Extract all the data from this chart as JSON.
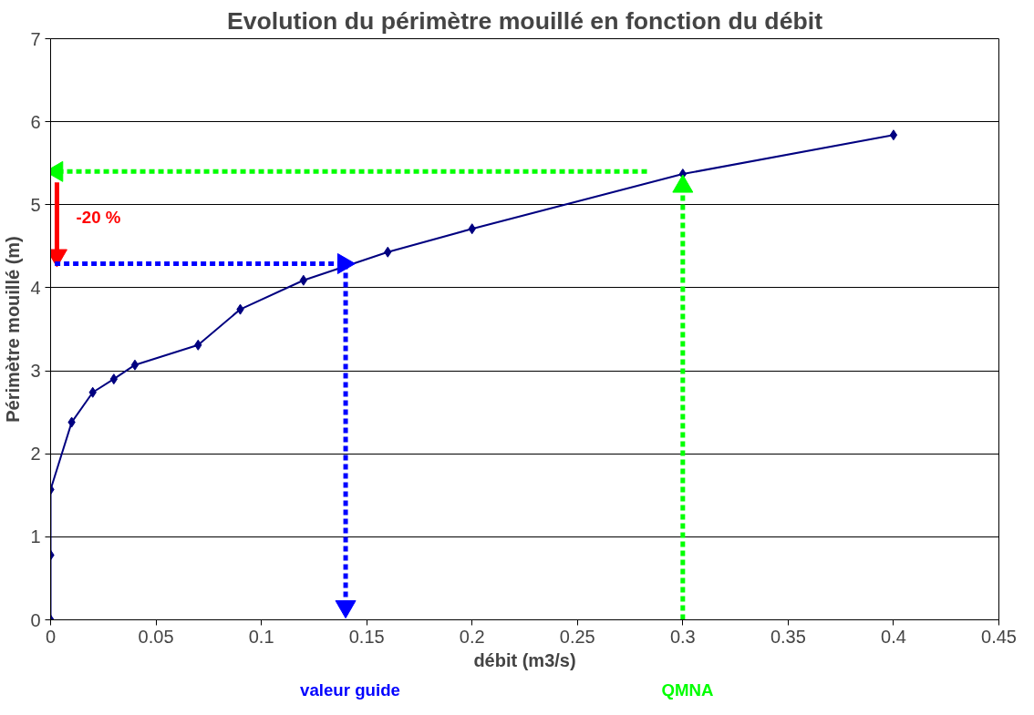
{
  "chart_data": {
    "type": "line",
    "title": "Evolution du périmètre mouillé en fonction du débit",
    "xlabel": "débit (m3/s)",
    "ylabel": "Périmètre mouillé (m)",
    "xlim": [
      0,
      0.45
    ],
    "ylim": [
      0,
      7
    ],
    "xticks": [
      0,
      0.05,
      0.1,
      0.15,
      0.2,
      0.25,
      0.3,
      0.35,
      0.4,
      0.45
    ],
    "yticks": [
      0,
      1,
      2,
      3,
      4,
      5,
      6,
      7
    ],
    "grid": "y",
    "series": [
      {
        "color": "#000080",
        "marker": "diamond",
        "line_style": "solid",
        "x": [
          0,
          0,
          0,
          0.01,
          0.02,
          0.03,
          0.04,
          0.07,
          0.09,
          0.12,
          0.16,
          0.2,
          0.3,
          0.4
        ],
        "values": [
          0,
          0.78,
          1.57,
          2.38,
          2.74,
          2.9,
          3.07,
          3.31,
          3.74,
          4.09,
          4.43,
          4.71,
          5.37,
          5.84
        ]
      },
      {
        "color": "#00ff00",
        "marker": "triangle",
        "line_style": "dotted",
        "x": [
          0.3,
          0.3
        ],
        "values": [
          0,
          5.22
        ]
      },
      {
        "color": "#00ff00",
        "marker": "triangle",
        "line_style": "dotted",
        "x": [
          0.283,
          0.003
        ],
        "values": [
          5.4,
          5.4
        ]
      },
      {
        "color": "#ff0000",
        "marker": "triangle",
        "line_style": "solid",
        "x": [
          0.003,
          0.003
        ],
        "values": [
          5.27,
          4.39
        ]
      },
      {
        "color": "#0000ff",
        "marker": "triangle",
        "line_style": "dotted",
        "x": [
          0.002,
          0.139
        ],
        "values": [
          4.29,
          4.29
        ]
      },
      {
        "color": "#0000ff",
        "marker": "triangle",
        "line_style": "dotted",
        "x": [
          0.14,
          0.14
        ],
        "values": [
          4.29,
          0.16
        ]
      }
    ],
    "annotations": [
      "-20 %",
      "valeur guide",
      "QMNA"
    ]
  }
}
